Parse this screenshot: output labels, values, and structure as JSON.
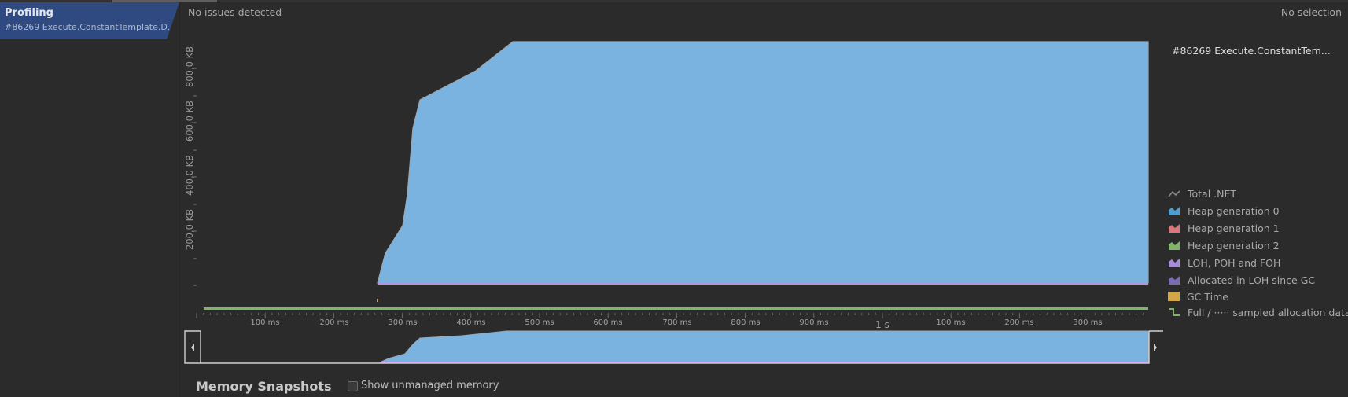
{
  "session": {
    "title": "Profiling",
    "subtitle": "#86269 Execute.ConstantTemplate.D..."
  },
  "status": {
    "issues": "No issues detected",
    "selection": "No selection"
  },
  "chart": {
    "y_ticks": [
      "200,0 KB",
      "400,0 KB",
      "600,0 KB",
      "800,0 KB"
    ],
    "x_ticks": [
      "100 ms",
      "200 ms",
      "300 ms",
      "400 ms",
      "500 ms",
      "600 ms",
      "700 ms",
      "800 ms",
      "900 ms",
      "1 s",
      "100 ms",
      "200 ms",
      "300 ms"
    ]
  },
  "legend": {
    "title": "#86269 Execute.ConstantTem...",
    "items": [
      {
        "label": "Total .NET",
        "icon": "line-icon",
        "color": "#8c8c8c"
      },
      {
        "label": "Heap generation 0",
        "icon": "area-icon",
        "color": "#4e9fd0"
      },
      {
        "label": "Heap generation 1",
        "icon": "area-icon",
        "color": "#d9777d"
      },
      {
        "label": "Heap generation 2",
        "icon": "area-icon",
        "color": "#7fb46a"
      },
      {
        "label": "LOH, POH and FOH",
        "icon": "area-icon",
        "color": "#a88bd9"
      },
      {
        "label": "Allocated in LOH since GC",
        "icon": "area-icon",
        "color": "#7b6bb0"
      },
      {
        "label": "GC Time",
        "icon": "square-icon",
        "color": "#d4a64a"
      },
      {
        "label": "Full / ····· sampled allocation data",
        "icon": "step-icon",
        "color": "#7fb46a"
      }
    ]
  },
  "snapshots": {
    "title": "Memory Snapshots",
    "checkbox_label": "Show unmanaged memory"
  },
  "colors": {
    "area_fill": "#7ab3df",
    "selection_bg": "#2f4a80",
    "gc_bar": "#7fb46a"
  }
}
